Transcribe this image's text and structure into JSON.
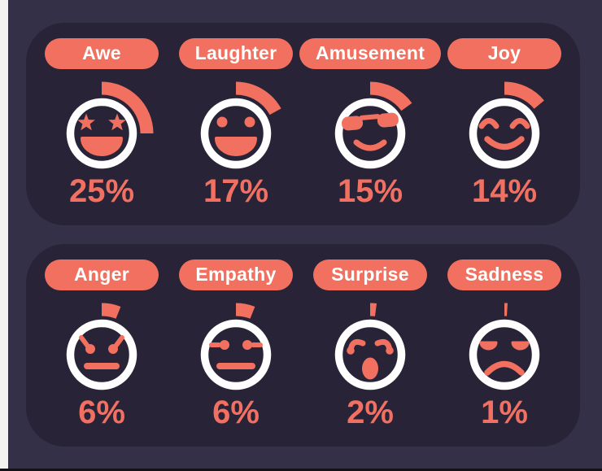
{
  "colors": {
    "background": "#343047",
    "panel": "#282336",
    "accent": "#f1705f",
    "percent_text": "#f17061",
    "ring": "#ffffff",
    "pill_text": "#ffffff",
    "left_strip": "#f4f3f1",
    "bottom_line": "#141119"
  },
  "panels": [
    {
      "name": "top-emotions-panel",
      "items": [
        {
          "label": "Awe",
          "value": "25%",
          "pct": 25,
          "icon": "star-eyes-grin-face-icon"
        },
        {
          "label": "Laughter",
          "value": "17%",
          "pct": 17,
          "icon": "dot-eyes-grin-face-icon"
        },
        {
          "label": "Amusement",
          "value": "15%",
          "pct": 15,
          "icon": "sunglasses-smile-face-icon"
        },
        {
          "label": "Joy",
          "value": "14%",
          "pct": 14,
          "icon": "smiling-closed-eyes-face-icon"
        }
      ]
    },
    {
      "name": "bottom-emotions-panel",
      "items": [
        {
          "label": "Anger",
          "value": "6%",
          "pct": 6,
          "icon": "angry-eyes-flat-mouth-face-icon"
        },
        {
          "label": "Empathy",
          "value": "6%",
          "pct": 6,
          "icon": "neutral-eyes-flat-mouth-face-icon"
        },
        {
          "label": "Surprise",
          "value": "2%",
          "pct": 2,
          "icon": "raised-brows-open-mouth-face-icon"
        },
        {
          "label": "Sadness",
          "value": "1%",
          "pct": 1,
          "icon": "closed-eyes-frown-face-icon"
        }
      ]
    }
  ],
  "chart_data": {
    "type": "pie",
    "subtype": "gauge-pictogram-grid",
    "categories": [
      "Awe",
      "Laughter",
      "Amusement",
      "Joy",
      "Anger",
      "Empathy",
      "Surprise",
      "Sadness"
    ],
    "values": [
      25,
      17,
      15,
      14,
      6,
      6,
      2,
      1
    ],
    "unit": "%",
    "title": "",
    "legend": "none",
    "notes": "Each emotion shown as emoji face with partial ring arc starting at 12 o'clock, sweeping clockwise proportional to percentage"
  }
}
